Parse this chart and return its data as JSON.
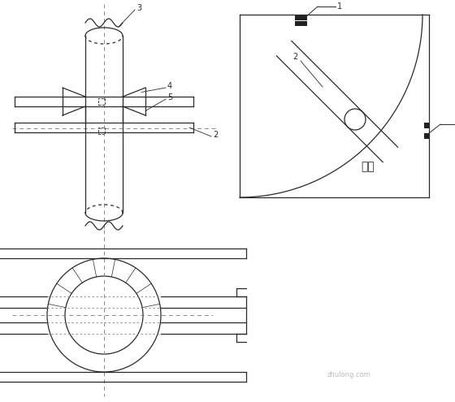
{
  "bg_color": "#ffffff",
  "lc": "#2a2a2a",
  "dc": "#888888",
  "lw": 0.9,
  "fig_w": 5.6,
  "fig_h": 4.95,
  "labels": {
    "3": "3",
    "4": "4",
    "5": "5",
    "2": "2",
    "1": "1",
    "guanjing": "管井"
  },
  "font_size": 7,
  "font_size_gj": 10
}
